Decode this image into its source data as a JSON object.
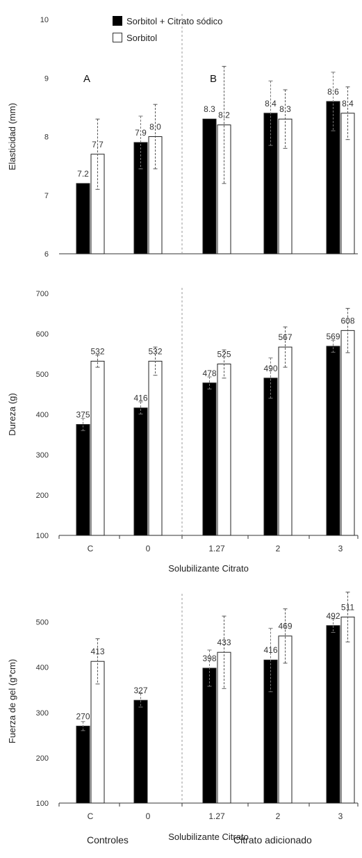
{
  "legend": {
    "filled": "Sorbitol + Citrato sódico",
    "hollow": "Sorbitol"
  },
  "footer": {
    "left": "Controles",
    "right": "Citrato adicionado"
  },
  "colors": {
    "filled": "#000000",
    "hollow": "#ffffff",
    "axis": "#333333",
    "divider": "#999999"
  },
  "chart_data": [
    {
      "type": "bar",
      "ylabel": "Elasticidad (mm)",
      "xlabel": "",
      "categories": [
        "C",
        "0",
        "1.27",
        "2",
        "3"
      ],
      "show_x_ticks": false,
      "ylim": [
        6,
        10
      ],
      "yticks": [
        6,
        7,
        8,
        9,
        10
      ],
      "group_labels": [
        {
          "text": "A",
          "category": "C"
        },
        {
          "text": "B",
          "category": "1.27"
        }
      ],
      "series": [
        {
          "name": "Sorbitol + Citrato sódico",
          "fill": "filled",
          "values": [
            7.2,
            7.9,
            8.3,
            8.4,
            8.6
          ],
          "labels": [
            "7.2",
            "7.9",
            "8.3",
            "8.4",
            "8.6"
          ],
          "errors": [
            0.0,
            0.45,
            0.0,
            0.55,
            0.5
          ]
        },
        {
          "name": "Sorbitol",
          "fill": "hollow",
          "values": [
            7.7,
            8.0,
            8.2,
            8.3,
            8.4
          ],
          "labels": [
            "7.7",
            "8.0",
            "8.2",
            "8.3",
            "8.4"
          ],
          "errors": [
            0.6,
            0.55,
            1.0,
            0.5,
            0.45
          ]
        }
      ]
    },
    {
      "type": "bar",
      "ylabel": "Dureza (g)",
      "xlabel": "Solubilizante Citrato",
      "categories": [
        "C",
        "0",
        "1.27",
        "2",
        "3"
      ],
      "show_x_ticks": true,
      "ylim": [
        100,
        700
      ],
      "yticks": [
        100,
        200,
        300,
        400,
        500,
        600,
        700
      ],
      "series": [
        {
          "name": "Sorbitol + Citrato sódico",
          "fill": "filled",
          "values": [
            375,
            416,
            478,
            490,
            569
          ],
          "labels": [
            "375",
            "416",
            "478",
            "490",
            "569"
          ],
          "errors": [
            15,
            15,
            15,
            50,
            15
          ]
        },
        {
          "name": "Sorbitol",
          "fill": "hollow",
          "values": [
            532,
            532,
            525,
            567,
            608
          ],
          "labels": [
            "532",
            "532",
            "525",
            "567",
            "608"
          ],
          "errors": [
            15,
            35,
            35,
            50,
            55
          ]
        }
      ]
    },
    {
      "type": "bar",
      "ylabel": "Fuerza de gel (g*cm)",
      "xlabel": "Solubilizante Citrato",
      "categories": [
        "C",
        "0",
        "1.27",
        "2",
        "3"
      ],
      "show_x_ticks": true,
      "ylim": [
        100,
        550
      ],
      "yticks": [
        100,
        200,
        300,
        400,
        500
      ],
      "series": [
        {
          "name": "Sorbitol + Citrato sódico",
          "fill": "filled",
          "values": [
            270,
            327,
            398,
            416,
            492
          ],
          "labels": [
            "270",
            "327",
            "398",
            "416",
            "492"
          ],
          "errors": [
            10,
            15,
            40,
            70,
            15
          ]
        },
        {
          "name": "Sorbitol",
          "fill": "hollow",
          "values": [
            413,
            null,
            433,
            469,
            511
          ],
          "labels": [
            "413",
            "",
            "433",
            "469",
            "511"
          ],
          "errors": [
            50,
            0,
            80,
            60,
            55
          ]
        }
      ]
    }
  ]
}
